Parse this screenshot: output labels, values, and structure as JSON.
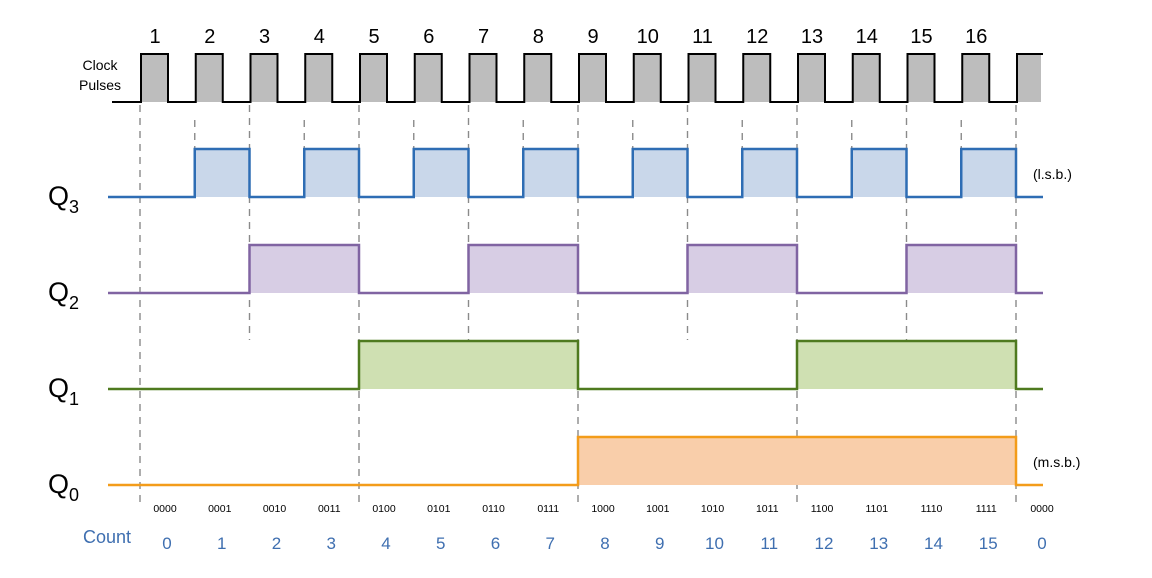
{
  "clock": {
    "label_line1": "Clock",
    "label_line2": "Pulses",
    "pulse_numbers": [
      "1",
      "2",
      "3",
      "4",
      "5",
      "6",
      "7",
      "8",
      "9",
      "10",
      "11",
      "12",
      "13",
      "14",
      "15",
      "16"
    ]
  },
  "signals": [
    {
      "key": "q3",
      "main": "Q",
      "sub": "3",
      "note": "(l.s.b.)",
      "color": "#2e6db4",
      "fill": "#c9d7ea",
      "levels": [
        0,
        1,
        0,
        1,
        0,
        1,
        0,
        1,
        0,
        1,
        0,
        1,
        0,
        1,
        0,
        1
      ]
    },
    {
      "key": "q2",
      "main": "Q",
      "sub": "2",
      "note": "",
      "color": "#8064a2",
      "fill": "#d7cde4",
      "levels": [
        0,
        0,
        1,
        1,
        0,
        0,
        1,
        1,
        0,
        0,
        1,
        1,
        0,
        0,
        1,
        1
      ]
    },
    {
      "key": "q1",
      "main": "Q",
      "sub": "1",
      "note": "",
      "color": "#4f7a1f",
      "fill": "#cfe0b2",
      "levels": [
        0,
        0,
        0,
        0,
        1,
        1,
        1,
        1,
        0,
        0,
        0,
        0,
        1,
        1,
        1,
        1
      ]
    },
    {
      "key": "q0",
      "main": "Q",
      "sub": "0",
      "note": "(m.s.b.)",
      "color": "#f39c1a",
      "fill": "#f9ceaa",
      "levels": [
        0,
        0,
        0,
        0,
        0,
        0,
        0,
        0,
        1,
        1,
        1,
        1,
        1,
        1,
        1,
        1
      ]
    }
  ],
  "binary_codes": [
    "0000",
    "0001",
    "0010",
    "0011",
    "0100",
    "0101",
    "0110",
    "0111",
    "1000",
    "1001",
    "1010",
    "1011",
    "1100",
    "1101",
    "1110",
    "1111",
    "0000"
  ],
  "count": {
    "label": "Count",
    "values": [
      "0",
      "1",
      "2",
      "3",
      "4",
      "5",
      "6",
      "7",
      "8",
      "9",
      "10",
      "11",
      "12",
      "13",
      "14",
      "15",
      "0"
    ],
    "color": "#3f6fb0"
  }
}
